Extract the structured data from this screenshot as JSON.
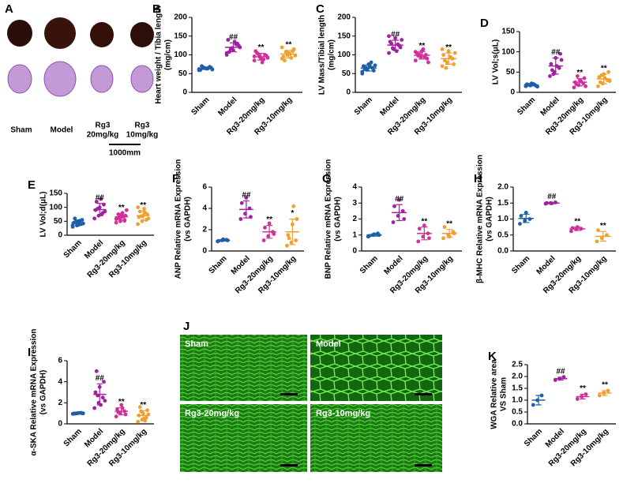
{
  "panel_A": {
    "letter": "A",
    "groups": [
      [
        "Sham"
      ],
      [
        "Model"
      ],
      [
        "Rg3",
        "20mg/kg"
      ],
      [
        "Rg3",
        "10mg/kg"
      ]
    ],
    "scale": "1000mm"
  },
  "panel_J": {
    "letter": "J",
    "tiles": [
      "Sham",
      "Model",
      "Rg3-20mg/kg",
      "Rg3-10mg/kg"
    ]
  },
  "chart_data": [
    {
      "type": "dot",
      "panel": "B",
      "ylabel": [
        "Heart weight / Tibia length",
        "(mg/cm)"
      ],
      "categories": [
        "Sham",
        "Model",
        "Rg3-20mg/kg",
        "Rg3-10mg/kg"
      ],
      "colors": [
        "#1f5fa8",
        "#a020a0",
        "#d0309a",
        "#f0a030"
      ],
      "values": [
        [
          62,
          65,
          68,
          60,
          64,
          66,
          70,
          63,
          61,
          67,
          65,
          59
        ],
        [
          105,
          118,
          130,
          140,
          112,
          125,
          108,
          135,
          120,
          115,
          128,
          100
        ],
        [
          85,
          95,
          100,
          110,
          90,
          98,
          105,
          80,
          92,
          102,
          88,
          96
        ],
        [
          90,
          100,
          110,
          95,
          105,
          115,
          85,
          102,
          98,
          108,
          92,
          120
        ]
      ],
      "mean": [
        64,
        120,
        95,
        102
      ],
      "sd": [
        3,
        12,
        9,
        10
      ],
      "marks": [
        null,
        "##",
        "**",
        "**"
      ],
      "ylim": [
        0,
        200
      ],
      "yticks": [
        0,
        50,
        100,
        150,
        200
      ]
    },
    {
      "type": "dot",
      "panel": "C",
      "ylabel": [
        "LV Mass/Tibial length",
        "(mg/cm)"
      ],
      "categories": [
        "Sham",
        "Model",
        "Rg3-20mg/kg",
        "Rg3-10mg/kg"
      ],
      "colors": [
        "#1f5fa8",
        "#a020a0",
        "#d0309a",
        "#f0a030"
      ],
      "values": [
        [
          55,
          60,
          65,
          70,
          75,
          58,
          62,
          68,
          72,
          66,
          80,
          50
        ],
        [
          105,
          115,
          125,
          135,
          145,
          120,
          130,
          110,
          140,
          118,
          128,
          150
        ],
        [
          85,
          95,
          100,
          105,
          110,
          90,
          98,
          115,
          80,
          102,
          95,
          108
        ],
        [
          70,
          80,
          90,
          100,
          110,
          75,
          85,
          95,
          105,
          65,
          92,
          115
        ]
      ],
      "mean": [
        65,
        126,
        99,
        90
      ],
      "sd": [
        8,
        13,
        10,
        15
      ],
      "marks": [
        null,
        "##",
        "**",
        "**"
      ],
      "ylim": [
        0,
        200
      ],
      "yticks": [
        0,
        50,
        100,
        150,
        200
      ]
    },
    {
      "type": "dot",
      "panel": "D",
      "ylabel": [
        "LV Vol;s(μL)"
      ],
      "categories": [
        "Sham",
        "Model",
        "Rg3-20mg/kg",
        "Rg3-10mg/kg"
      ],
      "colors": [
        "#1f5fa8",
        "#a020a0",
        "#d0309a",
        "#f0a030"
      ],
      "values": [
        [
          15,
          17,
          18,
          20,
          22,
          16,
          19,
          21,
          14,
          18,
          20,
          17
        ],
        [
          40,
          50,
          60,
          70,
          85,
          95,
          55,
          65,
          80,
          45
        ],
        [
          12,
          18,
          22,
          25,
          30,
          35,
          20,
          28,
          15,
          40
        ],
        [
          15,
          22,
          30,
          38,
          45,
          50,
          25,
          35,
          28,
          42
        ]
      ],
      "mean": [
        18,
        65,
        25,
        33
      ],
      "sd": [
        2,
        20,
        9,
        12
      ],
      "marks": [
        null,
        "##",
        "**",
        "**"
      ],
      "ylim": [
        0,
        150
      ],
      "yticks": [
        0,
        50,
        100,
        150
      ]
    },
    {
      "type": "dot",
      "panel": "E",
      "ylabel": [
        "LV Vol;d(μL)"
      ],
      "categories": [
        "Sham",
        "Model",
        "Rg3-20mg/kg",
        "Rg3-10mg/kg"
      ],
      "colors": [
        "#1f5fa8",
        "#a020a0",
        "#d0309a",
        "#f0a030"
      ],
      "values": [
        [
          30,
          35,
          40,
          45,
          50,
          55,
          60,
          38,
          42,
          48,
          52,
          36,
          44
        ],
        [
          60,
          70,
          80,
          90,
          100,
          110,
          120,
          130,
          85,
          95,
          75
        ],
        [
          45,
          50,
          55,
          60,
          65,
          70,
          75,
          80,
          90,
          62,
          68,
          58,
          72,
          52
        ],
        [
          40,
          50,
          55,
          65,
          70,
          75,
          85,
          95,
          60,
          68,
          80,
          100
        ]
      ],
      "mean": [
        45,
        92,
        66,
        70
      ],
      "sd": [
        9,
        22,
        12,
        17
      ],
      "marks": [
        null,
        "##",
        "**",
        "**"
      ],
      "ylim": [
        0,
        150
      ],
      "yticks": [
        0,
        50,
        100,
        150
      ]
    },
    {
      "type": "dot",
      "panel": "F",
      "ylabel": [
        "ANP Relative mRNA Expression",
        "(vs GAPDH)"
      ],
      "categories": [
        "Sham",
        "Model",
        "Rg3-20mg/kg",
        "Rg3-10mg/kg"
      ],
      "colors": [
        "#1f5fa8",
        "#a020a0",
        "#d0309a",
        "#f0a030"
      ],
      "values": [
        [
          0.9,
          1.0,
          1.05,
          0.95,
          1.1,
          1.0
        ],
        [
          3.0,
          3.5,
          4.0,
          4.5,
          5.0,
          3.2
        ],
        [
          1.0,
          1.4,
          1.8,
          2.2,
          2.6,
          1.6
        ],
        [
          0.5,
          0.8,
          1.0,
          1.5,
          2.5,
          3.0,
          1.2,
          4.2
        ]
      ],
      "mean": [
        1,
        3.9,
        1.8,
        1.8
      ],
      "sd": [
        0.07,
        0.8,
        0.6,
        1.2
      ],
      "marks": [
        null,
        "##",
        "**",
        "*"
      ],
      "ylim": [
        0,
        6
      ],
      "yticks": [
        0,
        2,
        4,
        6
      ]
    },
    {
      "type": "dot",
      "panel": "G",
      "ylabel": [
        "BNP Relative mRNA Expression",
        "(vs GAPDH)"
      ],
      "categories": [
        "Sham",
        "Model",
        "Rg3-20mg/kg",
        "Rg3-10mg/kg"
      ],
      "colors": [
        "#1f5fa8",
        "#a020a0",
        "#d0309a",
        "#f0a030"
      ],
      "values": [
        [
          0.9,
          1.0,
          1.1,
          0.95,
          1.05,
          1.0
        ],
        [
          1.8,
          2.2,
          2.5,
          2.8,
          3.2,
          2.0
        ],
        [
          0.6,
          0.9,
          1.1,
          1.4,
          1.6,
          0.8
        ],
        [
          0.8,
          1.0,
          1.2,
          1.5,
          0.9,
          1.1
        ]
      ],
      "mean": [
        1,
        2.4,
        1.1,
        1.1
      ],
      "sd": [
        0.07,
        0.5,
        0.4,
        0.25
      ],
      "marks": [
        null,
        "##",
        "**",
        "**"
      ],
      "ylim": [
        0,
        4
      ],
      "yticks": [
        0,
        1,
        2,
        3,
        4
      ]
    },
    {
      "type": "dot",
      "panel": "H",
      "ylabel": [
        "β-MHC Relative mRNA Expression",
        "(vs GAPDH)"
      ],
      "categories": [
        "Sham",
        "Model",
        "Rg3-20mg/kg",
        "Rg3-10mg/kg"
      ],
      "colors": [
        "#1f5fa8",
        "#a020a0",
        "#d0309a",
        "#f0a030"
      ],
      "values": [
        [
          0.85,
          0.95,
          1.0,
          1.1,
          1.2
        ],
        [
          1.48,
          1.5,
          1.52,
          1.5,
          1.49
        ],
        [
          0.62,
          0.68,
          0.7,
          0.72,
          0.75
        ],
        [
          0.3,
          0.4,
          0.5,
          0.65
        ]
      ],
      "mean": [
        1.02,
        1.5,
        0.69,
        0.46
      ],
      "sd": [
        0.13,
        0.02,
        0.05,
        0.15
      ],
      "marks": [
        null,
        "##",
        "**",
        "**"
      ],
      "ylim": [
        0,
        2
      ],
      "yticks": [
        {
          "value": 0,
          "label": "0.0"
        },
        0.5,
        {
          "value": 1,
          "label": "1.0"
        },
        1.5,
        {
          "value": 2,
          "label": "2.0"
        }
      ]
    },
    {
      "type": "dot",
      "panel": "I",
      "ylabel": [
        "α-SKA Relative mRNA Expression",
        "(vs GAPDH)"
      ],
      "categories": [
        "Sham",
        "Model",
        "Rg3-20mg/kg",
        "Rg3-10mg/kg"
      ],
      "colors": [
        "#1f5fa8",
        "#a020a0",
        "#d0309a",
        "#f0a030"
      ],
      "values": [
        [
          0.95,
          1.0,
          1.05,
          0.98,
          1.02,
          1.0,
          0.97,
          1.03,
          1.0,
          0.99
        ],
        [
          1.5,
          2.0,
          2.5,
          3.0,
          3.5,
          4.0,
          5.0,
          1.8,
          2.2,
          2.7
        ],
        [
          0.7,
          1.0,
          1.2,
          1.4,
          1.8,
          0.9,
          1.1,
          1.5
        ],
        [
          0.2,
          0.4,
          0.6,
          0.8,
          1.0,
          1.3,
          1.6,
          0.5,
          0.9,
          1.2,
          0.3
        ]
      ],
      "mean": [
        1,
        2.8,
        1.2,
        0.8
      ],
      "sd": [
        0.03,
        1.0,
        0.35,
        0.45
      ],
      "marks": [
        null,
        "##",
        "**",
        "**"
      ],
      "ylim": [
        0,
        6
      ],
      "yticks": [
        0,
        2,
        4,
        6
      ]
    },
    {
      "type": "dot",
      "panel": "K",
      "ylabel": [
        "WGA Relative area",
        "VS Sham"
      ],
      "categories": [
        "Sham",
        "Model",
        "Rg3-20mg/kg",
        "Rg3-10mg/kg"
      ],
      "colors": [
        "#1f5fa8",
        "#a020a0",
        "#d0309a",
        "#f0a030"
      ],
      "values": [
        [
          0.8,
          1.0,
          1.2
        ],
        [
          1.85,
          1.9,
          1.98
        ],
        [
          1.05,
          1.15,
          1.25
        ],
        [
          1.2,
          1.3,
          1.4
        ]
      ],
      "mean": [
        1.0,
        1.91,
        1.15,
        1.3
      ],
      "sd": [
        0.2,
        0.06,
        0.1,
        0.1
      ],
      "marks": [
        null,
        "##",
        "**",
        "**"
      ],
      "ylim": [
        0,
        2.5
      ],
      "yticks": [
        {
          "value": 0,
          "label": "0.0"
        },
        0.5,
        {
          "value": 1,
          "label": "1.0"
        },
        1.5,
        {
          "value": 2,
          "label": "2.0"
        },
        2.5
      ]
    }
  ]
}
